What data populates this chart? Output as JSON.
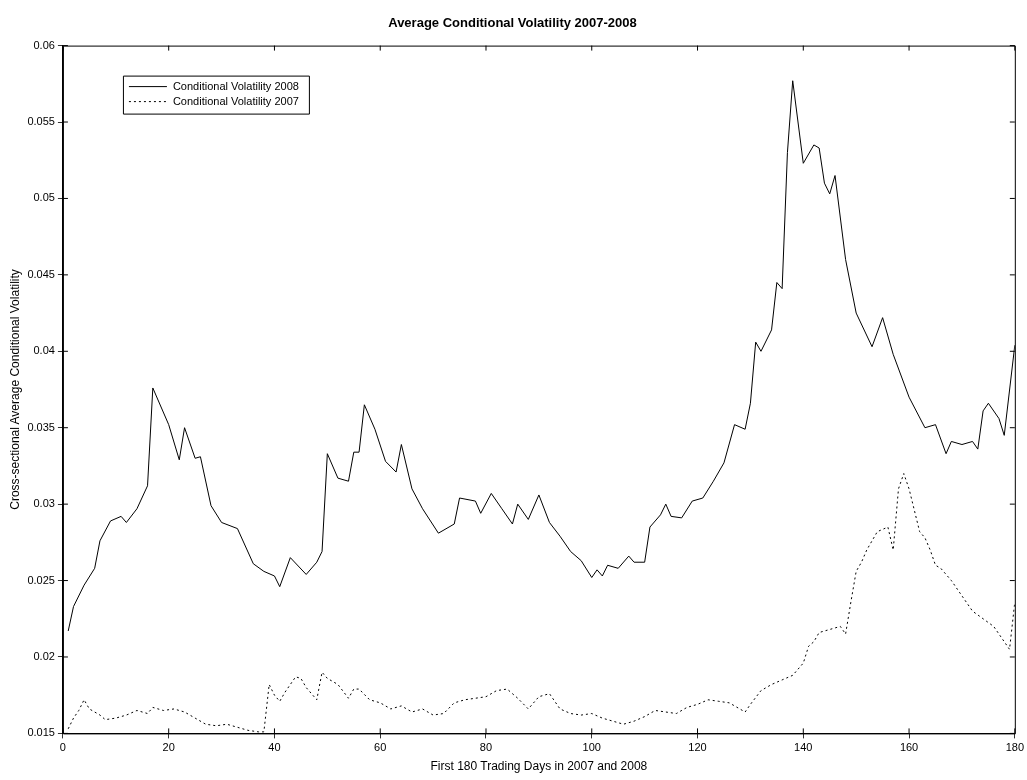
{
  "chart_data": {
    "type": "line",
    "title": "Average Conditional Volatility 2007-2008",
    "xlabel": "First 180 Trading Days in 2007 and 2008",
    "ylabel": "Cross-sectional Average Conditional Volatility",
    "xlim": [
      0,
      180
    ],
    "xticks": [
      0,
      20,
      40,
      60,
      80,
      100,
      120,
      140,
      160,
      180
    ],
    "ylim": [
      0.015,
      0.06
    ],
    "yticks": [
      0.015,
      0.02,
      0.025,
      0.03,
      0.035,
      0.04,
      0.045,
      0.05,
      0.055,
      0.06
    ],
    "grid": false,
    "legend": "top left",
    "marker": "none",
    "series": [
      {
        "name": "Conditional Volatility 2008",
        "color": "#000000",
        "line_style": "solid",
        "x": [
          1,
          2,
          4,
          6,
          7,
          9,
          11,
          12,
          14,
          16,
          17,
          20,
          22,
          23,
          25,
          26,
          28,
          30,
          33,
          36,
          38,
          40,
          41,
          43,
          46,
          48,
          49,
          50,
          52,
          54,
          55,
          56,
          57,
          59,
          61,
          63,
          64,
          66,
          68,
          71,
          74,
          75,
          78,
          79,
          81,
          83,
          85,
          86,
          88,
          90,
          92,
          94,
          96,
          98,
          100,
          101,
          102,
          103,
          105,
          107,
          108,
          110,
          111,
          113,
          114,
          115,
          117,
          119,
          121,
          123,
          125,
          127,
          129,
          130,
          131,
          132,
          134,
          135,
          136,
          137,
          138,
          140,
          142,
          143,
          144,
          145,
          146,
          148,
          150,
          153,
          155,
          157,
          160,
          163,
          165,
          167,
          168,
          170,
          172,
          173,
          174,
          175,
          177,
          178,
          180
        ],
        "values": [
          0.0217,
          0.0233,
          0.0247,
          0.0258,
          0.0276,
          0.0289,
          0.0292,
          0.0288,
          0.0297,
          0.0312,
          0.0376,
          0.0352,
          0.0329,
          0.035,
          0.033,
          0.0331,
          0.0299,
          0.0288,
          0.0284,
          0.0261,
          0.0256,
          0.0253,
          0.0246,
          0.0265,
          0.0254,
          0.0262,
          0.0269,
          0.0333,
          0.0317,
          0.0315,
          0.0334,
          0.0334,
          0.0365,
          0.0349,
          0.0328,
          0.0321,
          0.0339,
          0.031,
          0.0297,
          0.0281,
          0.0287,
          0.0304,
          0.0302,
          0.0294,
          0.0307,
          0.0297,
          0.0287,
          0.03,
          0.029,
          0.0306,
          0.0288,
          0.0279,
          0.0269,
          0.0263,
          0.0252,
          0.0257,
          0.0253,
          0.026,
          0.0258,
          0.0266,
          0.0262,
          0.0262,
          0.0285,
          0.0293,
          0.03,
          0.0292,
          0.0291,
          0.0302,
          0.0304,
          0.0315,
          0.0327,
          0.0352,
          0.0349,
          0.0366,
          0.0406,
          0.04,
          0.0414,
          0.0445,
          0.0441,
          0.053,
          0.0577,
          0.0523,
          0.0535,
          0.0533,
          0.051,
          0.0503,
          0.0515,
          0.046,
          0.0425,
          0.0403,
          0.0422,
          0.0398,
          0.037,
          0.035,
          0.0352,
          0.0333,
          0.0341,
          0.0339,
          0.0341,
          0.0336,
          0.0361,
          0.0366,
          0.0356,
          0.0345,
          0.0404
        ]
      },
      {
        "name": "Conditional Volatility 2007",
        "color": "#000000",
        "line_style": "dotted",
        "x": [
          1,
          2,
          3,
          4,
          5,
          7,
          8,
          10,
          12,
          14,
          16,
          17,
          19,
          21,
          23,
          25,
          27,
          29,
          31,
          33,
          35,
          37,
          38,
          39,
          40,
          41,
          42,
          44,
          45,
          46,
          48,
          49,
          50,
          52,
          54,
          55,
          56,
          58,
          60,
          62,
          64,
          66,
          68,
          70,
          72,
          74,
          76,
          78,
          80,
          82,
          84,
          86,
          88,
          90,
          92,
          94,
          96,
          98,
          100,
          102,
          104,
          106,
          108,
          110,
          112,
          114,
          116,
          118,
          120,
          122,
          124,
          126,
          128,
          129,
          130,
          132,
          134,
          136,
          138,
          140,
          141,
          142,
          143,
          145,
          147,
          148,
          149,
          150,
          151,
          152,
          154,
          156,
          157,
          158,
          159,
          160,
          161,
          162,
          163,
          164,
          165,
          166,
          168,
          170,
          172,
          174,
          176,
          178,
          179,
          180
        ],
        "values": [
          0.0153,
          0.016,
          0.0165,
          0.0172,
          0.0166,
          0.0162,
          0.0159,
          0.016,
          0.0162,
          0.0165,
          0.0163,
          0.0167,
          0.0165,
          0.0166,
          0.0164,
          0.016,
          0.0156,
          0.0155,
          0.0156,
          0.0154,
          0.0152,
          0.0151,
          0.0151,
          0.0182,
          0.0175,
          0.0171,
          0.0177,
          0.0187,
          0.0186,
          0.018,
          0.0172,
          0.019,
          0.0186,
          0.0182,
          0.0173,
          0.0179,
          0.0179,
          0.0172,
          0.017,
          0.0166,
          0.0168,
          0.0164,
          0.0166,
          0.0162,
          0.0163,
          0.017,
          0.0172,
          0.0173,
          0.0174,
          0.0178,
          0.0179,
          0.0173,
          0.0166,
          0.0174,
          0.0176,
          0.0166,
          0.0163,
          0.0162,
          0.0163,
          0.016,
          0.0158,
          0.0156,
          0.0158,
          0.0161,
          0.0165,
          0.0164,
          0.0163,
          0.0167,
          0.0169,
          0.0172,
          0.0171,
          0.017,
          0.0166,
          0.0164,
          0.0169,
          0.0178,
          0.0182,
          0.0185,
          0.0188,
          0.0196,
          0.0207,
          0.021,
          0.0216,
          0.0218,
          0.022,
          0.0215,
          0.0236,
          0.0256,
          0.0262,
          0.027,
          0.0282,
          0.0285,
          0.027,
          0.031,
          0.032,
          0.031,
          0.0296,
          0.0282,
          0.0278,
          0.027,
          0.026,
          0.0258,
          0.025,
          0.024,
          0.023,
          0.0225,
          0.022,
          0.021,
          0.0205,
          0.0236
        ]
      }
    ]
  }
}
